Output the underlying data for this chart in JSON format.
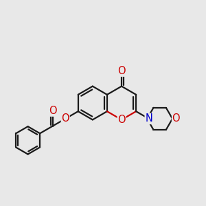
{
  "bg_color": "#e8e8e8",
  "bond_color": "#1a1a1a",
  "o_color": "#cc0000",
  "n_color": "#0000cc",
  "bond_width": 1.6,
  "font_size_atom": 10.5,
  "fig_size": [
    3.0,
    3.0
  ],
  "dpi": 100,
  "xlim": [
    0,
    10
  ],
  "ylim": [
    1.5,
    8.5
  ]
}
